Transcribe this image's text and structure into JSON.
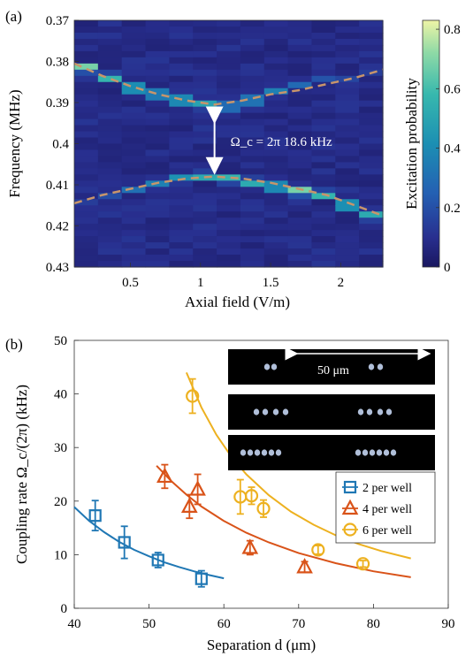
{
  "chart_data": [
    {
      "panel": "(a)",
      "type": "heatmap",
      "xlabel": "Axial field (V/m)",
      "ylabel": "Frequency (MHz)",
      "colorbar_label": "Excitation probability",
      "xlim": [
        0.1,
        2.3
      ],
      "ylim": [
        0.37,
        0.43
      ],
      "y_reversed": true,
      "xticks": [
        0.5,
        1,
        1.5,
        2
      ],
      "xtick_labels": [
        "0.5",
        "1",
        "1.5",
        "2"
      ],
      "yticks": [
        0.37,
        0.38,
        0.39,
        0.4,
        0.41,
        0.42,
        0.43
      ],
      "ytick_labels": [
        "0.37",
        "0.38",
        "0.39",
        "0.4",
        "0.41",
        "0.42",
        "0.43"
      ],
      "colorbar_ticks": [
        0,
        0.2,
        0.4,
        0.6,
        0.8
      ],
      "colorbar_tick_labels": [
        "0",
        "0.2",
        "0.4",
        "0.6",
        "0.8"
      ],
      "colorbar_range": [
        0,
        0.83
      ],
      "colormap": "viridis",
      "columns_x": [
        0.165,
        0.33,
        0.495,
        0.66,
        0.825,
        0.99,
        1.155,
        1.32,
        1.485,
        1.65,
        1.815,
        1.98,
        2.145
      ],
      "upper_branch_center_mhz": [
        0.3815,
        0.384,
        0.3865,
        0.388,
        0.3895,
        0.3905,
        0.391,
        0.3895,
        0.3875,
        0.3855,
        0.3845,
        0.384,
        0.383
      ],
      "upper_branch_peak": [
        0.72,
        0.6,
        0.65,
        0.55,
        0.62,
        0.52,
        0.45,
        0.5,
        0.38,
        0.3,
        0.22,
        0.18,
        0.15
      ],
      "lower_branch_center_mhz": [
        0.4145,
        0.4125,
        0.411,
        0.4095,
        0.4085,
        0.408,
        0.4085,
        0.4095,
        0.4105,
        0.4115,
        0.4125,
        0.415,
        0.4175
      ],
      "lower_branch_peak": [
        0.15,
        0.2,
        0.32,
        0.38,
        0.45,
        0.55,
        0.6,
        0.55,
        0.62,
        0.72,
        0.6,
        0.66,
        0.55
      ],
      "fit_curves": [
        {
          "style": "dashed",
          "color": "#c8956b",
          "x": [
            0.1,
            0.3,
            0.5,
            0.7,
            0.9,
            1.1,
            1.3,
            1.5,
            1.7,
            1.9,
            2.1,
            2.3
          ],
          "y": [
            0.3805,
            0.3835,
            0.386,
            0.388,
            0.3895,
            0.3905,
            0.3895,
            0.388,
            0.387,
            0.3855,
            0.384,
            0.382
          ]
        },
        {
          "style": "dashed",
          "color": "#c8956b",
          "x": [
            0.1,
            0.3,
            0.5,
            0.7,
            0.9,
            1.1,
            1.3,
            1.5,
            1.7,
            1.9,
            2.1,
            2.3
          ],
          "y": [
            0.4145,
            0.4125,
            0.411,
            0.4095,
            0.4085,
            0.408,
            0.4085,
            0.4095,
            0.411,
            0.4125,
            0.415,
            0.4175
          ]
        }
      ],
      "arrow": {
        "x": 1.1,
        "y_from": 0.3905,
        "y_to": 0.408
      },
      "annotation": "Ω_c = 2π 18.6 kHz"
    },
    {
      "panel": "(b)",
      "type": "scatter",
      "xlabel": "Separation d (μm)",
      "ylabel": "Coupling rate Ω_c/(2π) (kHz)",
      "xlim": [
        40,
        90
      ],
      "ylim": [
        0,
        50
      ],
      "xticks": [
        40,
        50,
        60,
        70,
        80,
        90
      ],
      "xtick_labels": [
        "40",
        "50",
        "60",
        "70",
        "80",
        "90"
      ],
      "yticks": [
        0,
        10,
        20,
        30,
        40,
        50
      ],
      "ytick_labels": [
        "0",
        "10",
        "20",
        "30",
        "40",
        "50"
      ],
      "legend_position": "right",
      "series": [
        {
          "name": "2 per well",
          "marker": "square",
          "color": "#1f77b4",
          "x": [
            42.8,
            46.7,
            51.2,
            57.0
          ],
          "y": [
            17.3,
            12.3,
            9.0,
            5.5
          ],
          "yerr": [
            2.8,
            3.0,
            1.4,
            1.5
          ],
          "fit": {
            "x": [
              40,
              42,
              44,
              46,
              48,
              50,
              52,
              54,
              56,
              58,
              60
            ],
            "y": [
              18.9,
              16.3,
              14.2,
              12.4,
              10.9,
              9.7,
              8.6,
              7.7,
              6.9,
              6.2,
              5.6
            ]
          }
        },
        {
          "name": "4 per well",
          "marker": "triangle",
          "color": "#d95319",
          "x": [
            52.1,
            55.4,
            56.5,
            63.5,
            70.8
          ],
          "y": [
            24.6,
            19.0,
            22.2,
            11.3,
            7.7
          ],
          "yerr": [
            2.2,
            2.2,
            2.8,
            1.3,
            1.0
          ],
          "fit": {
            "x": [
              51,
              53,
              55,
              57,
              60,
              63,
              66,
              70,
              75,
              80,
              85
            ],
            "y": [
              26.6,
              23.7,
              21.2,
              19.0,
              16.3,
              14.1,
              12.3,
              10.3,
              8.4,
              6.9,
              5.8
            ]
          }
        },
        {
          "name": "6 per well",
          "marker": "circle",
          "color": "#edb120",
          "x": [
            55.8,
            62.2,
            63.7,
            65.3,
            72.6,
            78.6
          ],
          "y": [
            39.6,
            20.8,
            21.0,
            18.6,
            10.9,
            8.3
          ],
          "yerr": [
            3.2,
            3.2,
            1.6,
            1.6,
            0.8,
            0.6
          ],
          "fit": {
            "x": [
              55,
              57,
              59,
              61,
              63,
              66,
              69,
              72,
              75,
              78,
              81,
              85
            ],
            "y": [
              44.0,
              37.5,
              32.4,
              28.3,
              25.0,
              21.1,
              18.0,
              15.6,
              13.6,
              12.0,
              10.7,
              9.3
            ]
          }
        }
      ],
      "inset": {
        "scale_label": "50 μm",
        "rows": [
          2,
          4,
          6
        ]
      }
    }
  ]
}
